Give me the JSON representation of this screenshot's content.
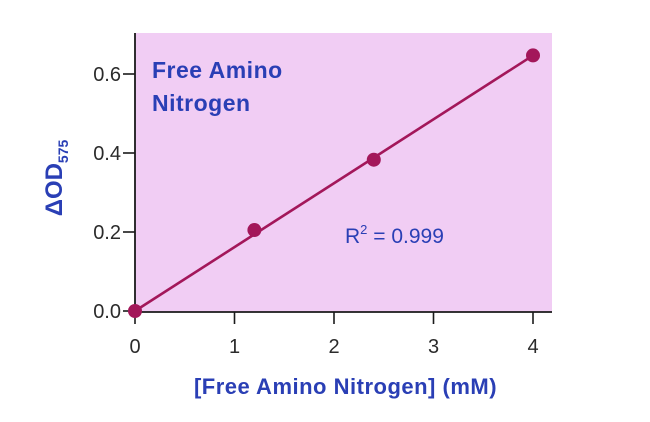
{
  "chart_data": {
    "type": "line",
    "title_lines": [
      "Free  Amino",
      "Nitrogen"
    ],
    "xlabel": "[Free  Amino Nitrogen] (mM)",
    "ylabel_main": "ΔOD",
    "ylabel_sub": "575",
    "xlim": [
      0,
      4.2
    ],
    "ylim": [
      0,
      0.7
    ],
    "xticks": [
      0,
      1,
      2,
      3,
      4
    ],
    "xtick_labels": [
      "0",
      "1",
      "2",
      "3",
      "4"
    ],
    "yticks": [
      0.0,
      0.2,
      0.4,
      0.6
    ],
    "ytick_labels": [
      "0.0",
      "0.2",
      "0.4",
      "0.6"
    ],
    "grid": false,
    "series": [
      {
        "x": [
          0,
          1.2,
          2.4,
          4
        ],
        "y": [
          0.0,
          0.205,
          0.383,
          0.647
        ]
      }
    ],
    "fit_line": {
      "x": [
        0,
        4
      ],
      "y": [
        0.0,
        0.647
      ]
    },
    "annotation": {
      "base": "R",
      "sup": "2",
      "text": " = 0.999"
    },
    "colors": {
      "plot_background": "#f1cdf4",
      "series": "#a3175a",
      "text": "#2a3fb5",
      "axis": "#1a1a1a"
    }
  }
}
